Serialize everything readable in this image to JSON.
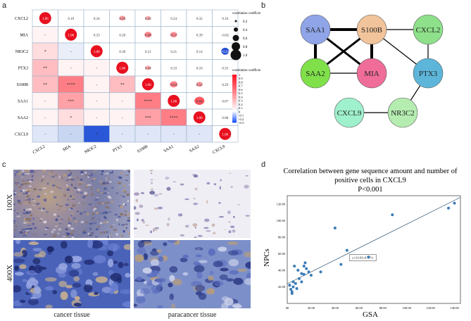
{
  "panels": {
    "a": "a",
    "b": "b",
    "c": "c",
    "d": "d"
  },
  "heatmap": {
    "genes": [
      "CXCL2",
      "MIA",
      "NR3C2",
      "PTX3",
      "S100B",
      "SAA1",
      "SAA2",
      "CXCL9"
    ],
    "upper": [
      [
        null,
        "0.10",
        "0.34",
        "0.50",
        "0.43",
        "0.24",
        "0.32",
        "0.34"
      ],
      [
        null,
        null,
        "0.33",
        "0.20",
        "0.60",
        "0.57",
        "0.39",
        "-0.02"
      ],
      [
        null,
        null,
        null,
        "0.30",
        "0.21",
        "0.21",
        "0.14",
        "-0.24"
      ],
      [
        null,
        null,
        null,
        null,
        "0.44",
        "0.33",
        "0.10",
        "0.35"
      ],
      [
        null,
        null,
        null,
        null,
        null,
        "0.64",
        "0.52",
        "0.29"
      ],
      [
        null,
        null,
        null,
        null,
        null,
        null,
        "0.84",
        "0.07"
      ],
      [
        null,
        null,
        null,
        null,
        null,
        null,
        null,
        "0.08"
      ],
      [
        null,
        null,
        null,
        null,
        null,
        null,
        null,
        null
      ]
    ],
    "diag": "1.00",
    "lower": [
      [],
      [
        "-"
      ],
      [
        "*",
        "-"
      ],
      [
        "**",
        "-",
        "-"
      ],
      [
        "**",
        "****",
        "-",
        "**"
      ],
      [
        "-",
        "***",
        "-",
        "-",
        "****"
      ],
      [
        "-",
        "*",
        "-",
        "-",
        "***",
        "****"
      ],
      [
        "-",
        "-",
        "*",
        "-",
        "-",
        "-",
        "-"
      ]
    ],
    "legend1_title": "correlation coefficient",
    "legend1_values": [
      "0.2",
      "0.4",
      "0.6",
      "0.8",
      "1.0"
    ],
    "legend2_title": "correlation coefficient",
    "legend2_values": [
      "1",
      "0.9",
      "0.8",
      "0.7",
      "0.6",
      "0.5",
      "0.4",
      "0.3",
      "0.2",
      "0.1",
      "0",
      "-0.1",
      "-0.2",
      "-0.3"
    ]
  },
  "network": {
    "nodes": [
      {
        "id": "SAA1",
        "label": "SAA1",
        "color": "#8fa5e8"
      },
      {
        "id": "S100B",
        "label": "S100B",
        "color": "#f2c49b"
      },
      {
        "id": "CXCL2",
        "label": "CXCL2",
        "color": "#8ee08a"
      },
      {
        "id": "SAA2",
        "label": "SAA2",
        "color": "#7fe04a"
      },
      {
        "id": "MIA",
        "label": "MIA",
        "color": "#f06d9a"
      },
      {
        "id": "PTX3",
        "label": "PTX3",
        "color": "#5db6d9"
      },
      {
        "id": "CXCL9",
        "label": "CXCL9",
        "color": "#9ff0cc"
      },
      {
        "id": "NR3C2",
        "label": "NR3C2",
        "color": "#b5ecb0"
      }
    ]
  },
  "histology": {
    "row_labels": [
      "100X",
      "400X"
    ],
    "col_labels": [
      "cancer tissue",
      "paracancer tissue"
    ]
  },
  "chart_data": {
    "type": "scatter",
    "title_line1": "Correlation between gene sequence amount and number of",
    "title_line2": "positive cells in CXCL9",
    "title_line3": "P<0.001",
    "xlabel": "GSA",
    "ylabel": "NPCs",
    "xlim": [
      0,
      145
    ],
    "ylim": [
      0,
      130
    ],
    "xticks": [
      "00",
      "20.00",
      "40.00",
      "60.00",
      "80.00",
      "100.00",
      "120.00",
      "140.00"
    ],
    "yticks": [
      "20.00",
      "40.00",
      "60.00",
      "80.00",
      "100.00",
      "120.00"
    ],
    "equation": "y=23.63+0.72*x",
    "points": [
      [
        2,
        22
      ],
      [
        3,
        17
      ],
      [
        4,
        12
      ],
      [
        4,
        14
      ],
      [
        5,
        26
      ],
      [
        5,
        20
      ],
      [
        6,
        45
      ],
      [
        7,
        24
      ],
      [
        8,
        18
      ],
      [
        9,
        40
      ],
      [
        10,
        30
      ],
      [
        12,
        36
      ],
      [
        12,
        26
      ],
      [
        14,
        35
      ],
      [
        14,
        45
      ],
      [
        15,
        49
      ],
      [
        16,
        42
      ],
      [
        18,
        38
      ],
      [
        20,
        34
      ],
      [
        28,
        38
      ],
      [
        40,
        91
      ],
      [
        45,
        47
      ],
      [
        50,
        64
      ],
      [
        68,
        56
      ],
      [
        88,
        107
      ],
      [
        135,
        115
      ],
      [
        140,
        121
      ]
    ],
    "fit": {
      "intercept": 23.63,
      "slope": 0.72
    }
  }
}
